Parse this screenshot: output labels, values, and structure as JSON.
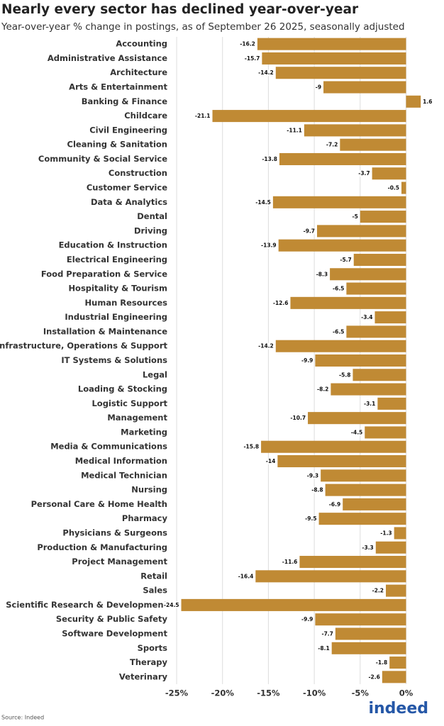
{
  "chart_data": {
    "type": "bar",
    "orientation": "horizontal",
    "title": "Nearly every sector has declined year-over-year",
    "subtitle": "Year-over-year % change in postings, as of September 26 2025, seasonally adjusted",
    "source": "Source: Indeed",
    "logo": "indeed",
    "color": "#c08a34",
    "grid": true,
    "categories": [
      "Accounting",
      "Administrative Assistance",
      "Architecture",
      "Arts & Entertainment",
      "Banking & Finance",
      "Childcare",
      "Civil Engineering",
      "Cleaning & Sanitation",
      "Community & Social Service",
      "Construction",
      "Customer Service",
      "Data & Analytics",
      "Dental",
      "Driving",
      "Education & Instruction",
      "Electrical Engineering",
      "Food Preparation & Service",
      "Hospitality & Tourism",
      "Human Resources",
      "Industrial Engineering",
      "Installation & Maintenance",
      "IT Infrastructure, Operations & Support",
      "IT Systems & Solutions",
      "Legal",
      "Loading & Stocking",
      "Logistic Support",
      "Management",
      "Marketing",
      "Media & Communications",
      "Medical Information",
      "Medical Technician",
      "Nursing",
      "Personal Care & Home Health",
      "Pharmacy",
      "Physicians & Surgeons",
      "Production & Manufacturing",
      "Project Management",
      "Retail",
      "Sales",
      "Scientific Research & Development",
      "Security & Public Safety",
      "Software Development",
      "Sports",
      "Therapy",
      "Veterinary"
    ],
    "values": [
      -16.2,
      -15.7,
      -14.2,
      -9,
      1.6,
      -21.1,
      -11.1,
      -7.2,
      -13.8,
      -3.7,
      -0.5,
      -14.5,
      -5,
      -9.7,
      -13.9,
      -5.7,
      -8.3,
      -6.5,
      -12.6,
      -3.4,
      -6.5,
      -14.2,
      -9.9,
      -5.8,
      -8.2,
      -3.1,
      -10.7,
      -4.5,
      -15.8,
      -14,
      -9.3,
      -8.8,
      -6.9,
      -9.5,
      -1.3,
      -3.3,
      -11.6,
      -16.4,
      -2.2,
      -24.5,
      -9.9,
      -7.7,
      -8.1,
      -1.8,
      -2.6
    ],
    "xlim": [
      -25.7,
      2.9
    ],
    "xticks": [
      {
        "value": -25,
        "label": "-25%"
      },
      {
        "value": -20,
        "label": "-20%"
      },
      {
        "value": -15,
        "label": "-15%"
      },
      {
        "value": -10,
        "label": "-10%"
      },
      {
        "value": -5,
        "label": "-5%"
      },
      {
        "value": 0,
        "label": "0%"
      }
    ]
  }
}
